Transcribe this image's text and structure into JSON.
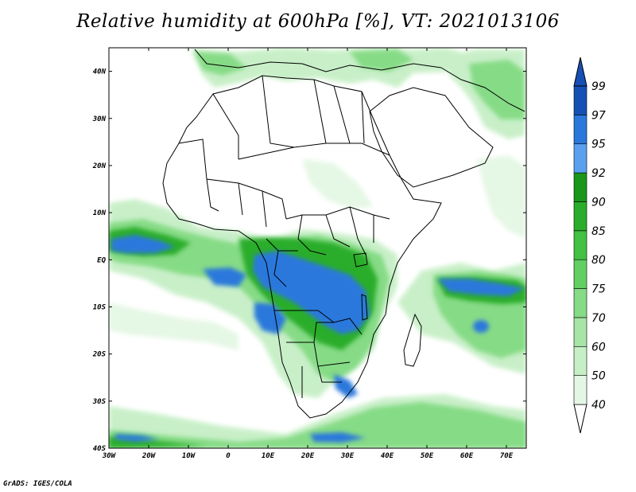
{
  "title": "Relative humidity at 600hPa [%], VT: 2021013106",
  "credit": "GrADS: IGES/COLA",
  "map": {
    "projection": "lat-lon",
    "lon_range": [
      -30,
      75
    ],
    "lat_range": [
      -40,
      45
    ],
    "lon_ticks": [
      "30W",
      "20W",
      "10W",
      "0",
      "10E",
      "20E",
      "30E",
      "40E",
      "50E",
      "60E",
      "70E"
    ],
    "lat_ticks": [
      "40N",
      "30N",
      "20N",
      "10N",
      "EQ",
      "10S",
      "20S",
      "30S",
      "40S"
    ],
    "land_fill": "#ffffff",
    "border_color": "#000000"
  },
  "colorbar": {
    "levels": [
      "40",
      "50",
      "60",
      "70",
      "75",
      "80",
      "85",
      "90",
      "92",
      "95",
      "97",
      "99"
    ],
    "colors": [
      "#ffffff",
      "#e4f7e4",
      "#c6efc6",
      "#a6e5a6",
      "#86db86",
      "#62cf62",
      "#42c142",
      "#2aad2a",
      "#1a961a",
      "#5aa0ee",
      "#2a78dc",
      "#1650b4"
    ],
    "extends": "both"
  },
  "humidity_shading": {
    "variable": "relative humidity",
    "level": "600hPa",
    "units": "%",
    "valid_time": "2021013106"
  }
}
